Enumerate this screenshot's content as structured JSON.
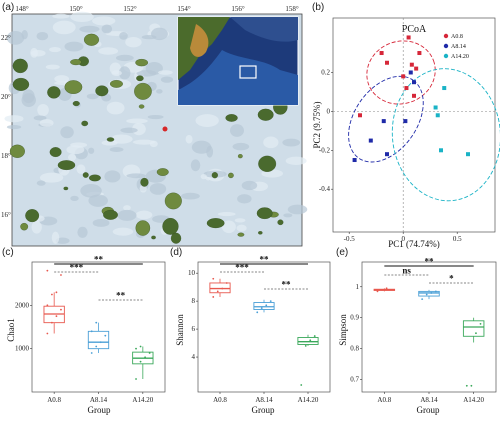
{
  "panel_labels": {
    "a": "(a)",
    "b": "(b)",
    "c": "(c)",
    "d": "(d)",
    "e": "(e)"
  },
  "map": {
    "lon_ticks": [
      "148°",
      "150°",
      "152°",
      "154°",
      "156°",
      "158°"
    ],
    "lat_ticks": [
      "22°",
      "20°",
      "18°",
      "16°"
    ],
    "colors": {
      "ocean": "#cfe0ee",
      "land": "#3f5a2a",
      "deep": "#1a2f6b",
      "marker": "#d62728"
    }
  },
  "chart_data": [
    {
      "type": "scatter",
      "title": "PCoA",
      "xlabel": "PC1 (74.74%)",
      "ylabel": "PC2 (9.75%)",
      "xlim": [
        -0.65,
        0.85
      ],
      "ylim": [
        -0.62,
        0.48
      ],
      "xticks": [
        "-0.5",
        "0",
        "0.5"
      ],
      "yticks": [
        "0.2",
        "0",
        "-0.2",
        "-0.4"
      ],
      "legend_position": "top-right",
      "series": [
        {
          "name": "A0.8",
          "color": "#d62739",
          "points": [
            [
              -0.2,
              0.3
            ],
            [
              -0.15,
              0.25
            ],
            [
              0.0,
              0.18
            ],
            [
              0.03,
              0.12
            ],
            [
              0.05,
              0.38
            ],
            [
              0.08,
              0.24
            ],
            [
              0.1,
              0.08
            ],
            [
              0.12,
              0.22
            ],
            [
              0.15,
              0.3
            ],
            [
              -0.4,
              -0.02
            ]
          ]
        },
        {
          "name": "A8.14",
          "color": "#1f2aa8",
          "points": [
            [
              -0.45,
              -0.25
            ],
            [
              -0.3,
              -0.15
            ],
            [
              -0.18,
              -0.05
            ],
            [
              -0.15,
              -0.22
            ],
            [
              0.02,
              -0.05
            ],
            [
              0.07,
              0.2
            ],
            [
              0.1,
              0.15
            ]
          ]
        },
        {
          "name": "A14.20",
          "color": "#1ab3c6",
          "points": [
            [
              0.3,
              0.02
            ],
            [
              0.32,
              -0.02
            ],
            [
              0.38,
              0.12
            ],
            [
              0.35,
              -0.2
            ],
            [
              0.6,
              -0.22
            ]
          ]
        }
      ]
    },
    {
      "type": "box",
      "ylabel": "Chao1",
      "xlabel": "Group",
      "categories": [
        "A0.8",
        "A8.14",
        "A14.20"
      ],
      "yticks": [
        1000,
        2000
      ],
      "ylim": [
        0,
        3000
      ],
      "boxes": [
        {
          "group": "A0.8",
          "min": 1350,
          "q1": 1600,
          "median": 1800,
          "q3": 1980,
          "max": 2300,
          "points": [
            1350,
            1600,
            1750,
            1900,
            2000,
            2250,
            2300,
            2700,
            2800
          ],
          "color": "#e8584e"
        },
        {
          "group": "A8.14",
          "min": 900,
          "q1": 1000,
          "median": 1150,
          "q3": 1400,
          "max": 1600,
          "points": [
            900,
            1050,
            1150,
            1300,
            1400,
            1600
          ],
          "color": "#4a9fd6"
        },
        {
          "group": "A14.20",
          "min": 300,
          "q1": 650,
          "median": 780,
          "q3": 920,
          "max": 1050,
          "points": [
            300,
            700,
            800,
            900,
            1000,
            1050
          ],
          "color": "#3aa85a"
        }
      ],
      "significance": [
        {
          "pair": [
            "A0.8",
            "A14.20"
          ],
          "label": "**"
        },
        {
          "pair": [
            "A0.8",
            "A8.14"
          ],
          "label": "***"
        },
        {
          "pair": [
            "A8.14",
            "A14.20"
          ],
          "label": "**"
        }
      ]
    },
    {
      "type": "box",
      "ylabel": "Shannon",
      "xlabel": "Group",
      "categories": [
        "A0.8",
        "A8.14",
        "A14.20"
      ],
      "yticks": [
        4,
        6,
        8,
        10
      ],
      "ylim": [
        1.5,
        10.8
      ],
      "boxes": [
        {
          "group": "A0.8",
          "min": 8.3,
          "q1": 8.6,
          "median": 8.9,
          "q3": 9.3,
          "max": 9.6,
          "points": [
            8.3,
            8.7,
            8.9,
            9.3,
            9.6
          ],
          "color": "#e8584e"
        },
        {
          "group": "A8.14",
          "min": 7.2,
          "q1": 7.4,
          "median": 7.6,
          "q3": 7.9,
          "max": 8.1,
          "points": [
            7.2,
            7.5,
            7.7,
            8.0
          ],
          "color": "#4a9fd6"
        },
        {
          "group": "A14.20",
          "min": 4.8,
          "q1": 4.9,
          "median": 5.1,
          "q3": 5.4,
          "max": 5.6,
          "points": [
            2.0,
            4.8,
            5.2,
            5.5
          ],
          "color": "#3aa85a"
        }
      ],
      "significance": [
        {
          "pair": [
            "A0.8",
            "A14.20"
          ],
          "label": "**"
        },
        {
          "pair": [
            "A0.8",
            "A8.14"
          ],
          "label": "***"
        },
        {
          "pair": [
            "A8.14",
            "A14.20"
          ],
          "label": "**"
        }
      ]
    },
    {
      "type": "box",
      "ylabel": "Simpson",
      "xlabel": "Group",
      "categories": [
        "A0.8",
        "A8.14",
        "A14.20"
      ],
      "yticks": [
        0.7,
        0.8,
        0.9,
        1.0
      ],
      "ylim": [
        0.66,
        1.08
      ],
      "boxes": [
        {
          "group": "A0.8",
          "min": 0.985,
          "q1": 0.988,
          "median": 0.99,
          "q3": 0.992,
          "max": 0.995,
          "points": [
            0.985,
            0.99,
            0.995
          ],
          "color": "#e8584e"
        },
        {
          "group": "A8.14",
          "min": 0.96,
          "q1": 0.97,
          "median": 0.98,
          "q3": 0.985,
          "max": 0.99,
          "points": [
            0.96,
            0.975,
            0.98,
            0.985
          ],
          "color": "#4a9fd6"
        },
        {
          "group": "A14.20",
          "min": 0.82,
          "q1": 0.84,
          "median": 0.87,
          "q3": 0.89,
          "max": 0.9,
          "points": [
            0.68,
            0.68,
            0.85,
            0.88
          ],
          "color": "#3aa85a"
        }
      ],
      "significance": [
        {
          "pair": [
            "A0.8",
            "A14.20"
          ],
          "label": "**"
        },
        {
          "pair": [
            "A0.8",
            "A8.14"
          ],
          "label": "ns"
        },
        {
          "pair": [
            "A8.14",
            "A14.20"
          ],
          "label": "*"
        }
      ]
    }
  ]
}
